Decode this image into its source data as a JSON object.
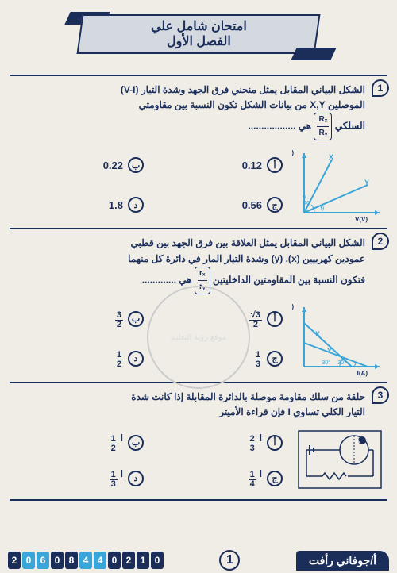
{
  "header": {
    "title_line1": "امتحان شامل علي",
    "title_line2": "الفصل الأول"
  },
  "watermark": "موقع رؤية التعليم",
  "questions": [
    {
      "num": "1",
      "text_parts": [
        "الشكل البياني المقابل يمثل منحني فرق الجهد وشدة التيار (V-I)",
        "الموصلين X,Y من بيانات الشكل تكون النسبة بين مقاومتي",
        "السلكي "
      ],
      "frac_top": "Rₓ",
      "frac_bot": "Rᵧ",
      "tail": " هي ..................",
      "options": [
        {
          "label": "أ",
          "val": "0.12"
        },
        {
          "label": "ب",
          "val": "0.22"
        },
        {
          "label": "ج",
          "val": "0.56"
        },
        {
          "label": "د",
          "val": "1.8"
        }
      ],
      "graph": {
        "type": "vi_two_lines",
        "xlabel": "V(V)",
        "ylabel": "I(A)",
        "angle1": 40,
        "angle2": 20,
        "l1": "X",
        "l2": "Y",
        "color": "#3aa5d8"
      }
    },
    {
      "num": "2",
      "text_parts": [
        "الشكل البياني المقابل يمثل العلاقة بين فرق الجهد بين قطبي",
        "عمودين كهربيين (x), (y) وشدة التيار المار في دائرة كل منهما",
        "فتكون النسبة بين المقاومتين الداخليتين "
      ],
      "frac_top": "rₓ",
      "frac_bot": "rᵧ",
      "tail": " هي .............",
      "options": [
        {
          "label": "أ",
          "frac": {
            "t": "√3",
            "b": "2"
          }
        },
        {
          "label": "ب",
          "frac": {
            "t": "3",
            "b": "2"
          }
        },
        {
          "label": "ج",
          "frac": {
            "t": "1",
            "b": "3"
          }
        },
        {
          "label": "د",
          "frac": {
            "t": "1",
            "b": "2"
          }
        }
      ],
      "graph": {
        "type": "vi_decreasing",
        "xlabel": "I(A)",
        "ylabel": "V(V)",
        "angle1": 30,
        "angle2": 30,
        "l1": "X",
        "l2": "Y",
        "color": "#3aa5d8"
      }
    },
    {
      "num": "3",
      "text_parts": [
        "حلقة من سلك مقاومة موصلة بالدائرة المقابلة إذا كانت شدة",
        "التيار الكلي تساوي I فإن قراءة الأميتر"
      ],
      "options": [
        {
          "label": "أ",
          "frac": {
            "t": "2",
            "b": "3"
          },
          "suffix": "I"
        },
        {
          "label": "ب",
          "frac": {
            "t": "1",
            "b": "2"
          },
          "suffix": "I"
        },
        {
          "label": "ج",
          "frac": {
            "t": "1",
            "b": "4"
          },
          "suffix": "I"
        },
        {
          "label": "د",
          "frac": {
            "t": "1",
            "b": "3"
          },
          "suffix": "I"
        }
      ],
      "graph": {
        "type": "circuit",
        "color": "#1b2e5a"
      }
    }
  ],
  "footer": {
    "teacher": "أ/جوفاني رأفت",
    "page": "1",
    "phone": [
      "0",
      "1",
      "2",
      "0",
      "4",
      "4",
      "8",
      "0",
      "6",
      "0",
      "2"
    ],
    "phone_alt_idx": [
      4,
      5,
      8,
      9
    ]
  },
  "colors": {
    "primary": "#1b2e5a",
    "accent": "#3aa5d8",
    "bg": "#f0ede6"
  }
}
